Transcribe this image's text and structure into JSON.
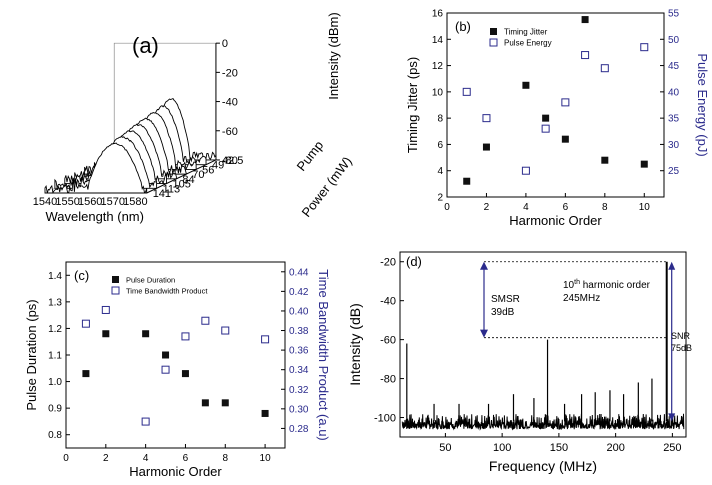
{
  "chart_data": [
    {
      "panel": "(a)",
      "type": "waterfall-spectra",
      "xlabel": "Wavelength (nm)",
      "zlabel": "Intensity (dBm)",
      "ylabel": "Pump Power (mW)",
      "ylabel_parts": [
        "Pump",
        "Power (mW)"
      ],
      "x_ticks": [
        1540,
        1550,
        1560,
        1570,
        1580
      ],
      "z_ticks": [
        0,
        -20,
        -40,
        -60,
        -80
      ],
      "pump_ticks": [
        "42.5",
        "49",
        "56",
        "70",
        "84",
        "105",
        "113",
        "141"
      ],
      "peak_wavelengths": [
        1565,
        1566,
        1566.5,
        1567,
        1568,
        1569,
        1570,
        1571
      ],
      "peak_intensities": [
        -38,
        -40,
        -41,
        -42,
        -43,
        -44,
        -45,
        -46
      ]
    },
    {
      "panel": "(b)",
      "type": "scatter",
      "xlabel": "Harmonic Order",
      "ylabel": "Timing Jitter (ps)",
      "y2label": "Pulse Energy (pJ)",
      "xlim": [
        0,
        11
      ],
      "ylim": [
        2,
        16
      ],
      "y2lim": [
        20,
        55
      ],
      "x_ticks": [
        0,
        2,
        4,
        6,
        8,
        10
      ],
      "y_ticks": [
        2,
        4,
        6,
        8,
        10,
        12,
        14,
        16
      ],
      "y2_ticks": [
        25,
        30,
        35,
        40,
        45,
        50,
        55
      ],
      "series": [
        {
          "name": "Timing Jitter",
          "marker": "filled-square",
          "axis": "left",
          "x": [
            1,
            2,
            4,
            5,
            6,
            7,
            8,
            10
          ],
          "y": [
            3.2,
            5.8,
            10.5,
            8.0,
            6.4,
            15.5,
            4.8,
            4.5
          ]
        },
        {
          "name": "Pulse Energy",
          "marker": "open-square",
          "axis": "right",
          "x": [
            1,
            2,
            4,
            5,
            6,
            7,
            8,
            10
          ],
          "y": [
            40,
            35,
            25,
            33,
            38,
            47,
            44.5,
            48.5
          ]
        }
      ]
    },
    {
      "panel": "(c)",
      "type": "scatter",
      "xlabel": "Harmonic Order",
      "ylabel": "Pulse Duration (ps)",
      "y2label": "Time Bandwidth Product (a.u)",
      "xlim": [
        0,
        11
      ],
      "ylim": [
        0.75,
        1.45
      ],
      "y2lim": [
        0.26,
        0.45
      ],
      "x_ticks": [
        0,
        2,
        4,
        6,
        8,
        10
      ],
      "y_ticks": [
        "0.8",
        "0.9",
        "1.0",
        "1.1",
        "1.2",
        "1.3",
        "1.4"
      ],
      "y2_ticks": [
        "0.28",
        "0.30",
        "0.32",
        "0.34",
        "0.36",
        "0.38",
        "0.40",
        "0.42",
        "0.44"
      ],
      "series": [
        {
          "name": "Pulse Duration",
          "marker": "filled-square",
          "axis": "left",
          "x": [
            1,
            2,
            4,
            5,
            6,
            7,
            8,
            10
          ],
          "y": [
            1.03,
            1.18,
            1.18,
            1.1,
            1.03,
            0.92,
            0.92,
            0.88
          ]
        },
        {
          "name": "Time Bandwidth Product",
          "marker": "open-square",
          "axis": "right",
          "x": [
            1,
            2,
            4,
            5,
            6,
            7,
            8,
            10
          ],
          "y": [
            0.387,
            0.401,
            0.287,
            0.34,
            0.374,
            0.39,
            0.38,
            0.371
          ]
        }
      ]
    },
    {
      "panel": "(d)",
      "type": "line",
      "xlabel": "Frequency (MHz)",
      "ylabel": "Intensity (dB)",
      "xlim": [
        10,
        262
      ],
      "ylim": [
        -110,
        -15
      ],
      "x_ticks": [
        50,
        100,
        150,
        200,
        250
      ],
      "y_ticks": [
        -20,
        -40,
        -60,
        -80,
        -100
      ],
      "noise_floor": -102,
      "peaks": [
        {
          "x": 16,
          "y": -62
        },
        {
          "x": 140,
          "y": -60
        },
        {
          "x": 245,
          "y": -20
        },
        {
          "x": 40,
          "y": -93
        },
        {
          "x": 62,
          "y": -93
        },
        {
          "x": 88,
          "y": -93
        },
        {
          "x": 110,
          "y": -88
        },
        {
          "x": 128,
          "y": -90
        },
        {
          "x": 155,
          "y": -93
        },
        {
          "x": 170,
          "y": -88
        },
        {
          "x": 182,
          "y": -87
        },
        {
          "x": 195,
          "y": -86
        },
        {
          "x": 207,
          "y": -88
        },
        {
          "x": 220,
          "y": -82
        },
        {
          "x": 232,
          "y": -80
        }
      ],
      "annotations": {
        "smsr_label": "SMSR",
        "smsr_value": "39dB",
        "harmonic_number": "10",
        "harmonic_suffix": "th",
        "harmonic_text": " harmonic order",
        "harmonic_freq": "245MHz",
        "snr_label": "SNR",
        "snr_value": "75dB"
      }
    }
  ]
}
